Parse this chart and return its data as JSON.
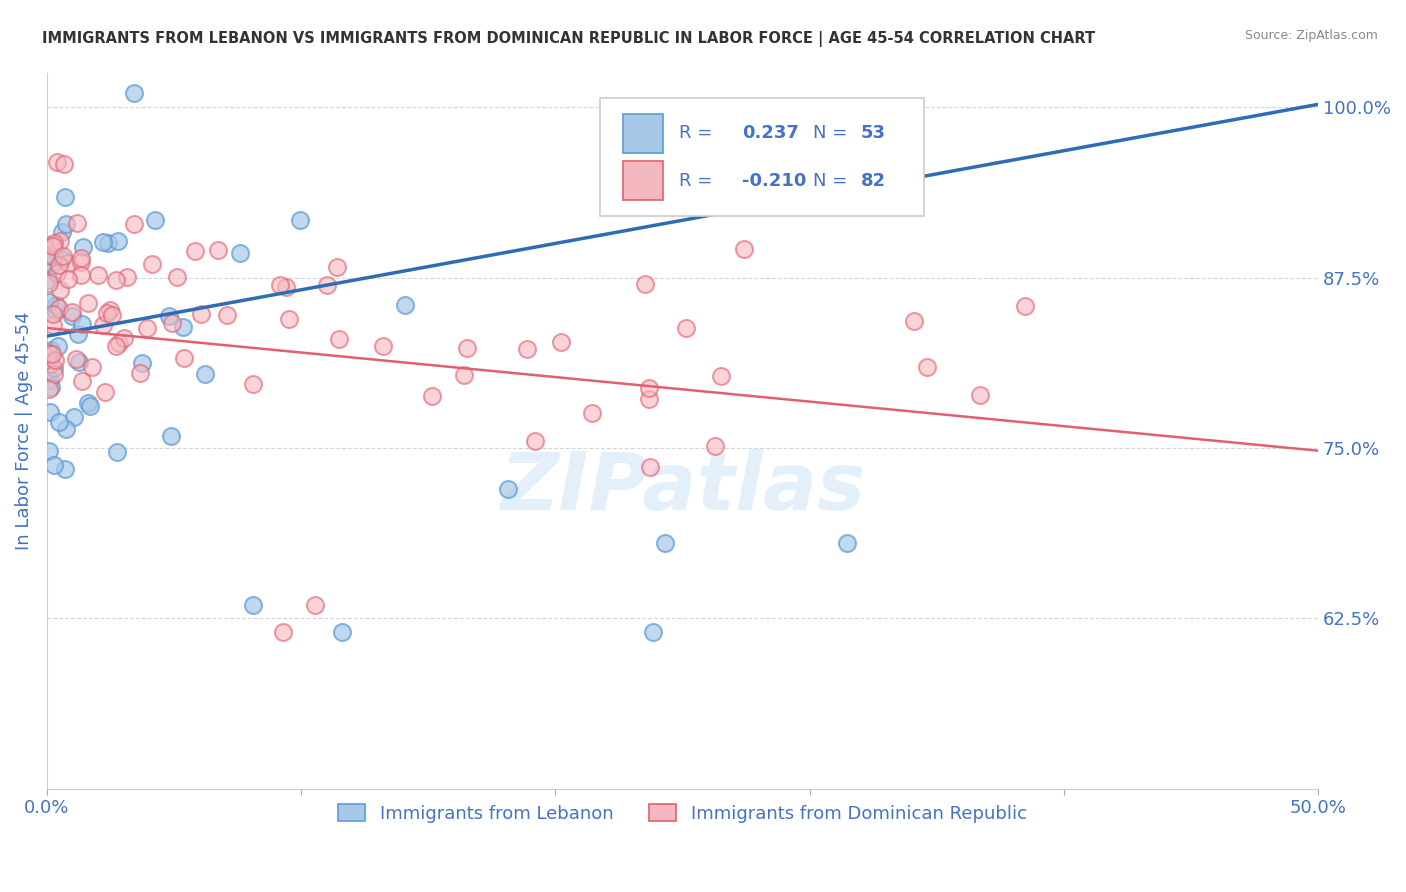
{
  "title": "IMMIGRANTS FROM LEBANON VS IMMIGRANTS FROM DOMINICAN REPUBLIC IN LABOR FORCE | AGE 45-54 CORRELATION CHART",
  "source": "Source: ZipAtlas.com",
  "ylabel": "In Labor Force | Age 45-54",
  "xlim": [
    0.0,
    0.5
  ],
  "ylim": [
    0.5,
    1.025
  ],
  "blue_color": "#a8c8e8",
  "blue_edge_color": "#5b9bd5",
  "pink_color": "#f4b8c1",
  "pink_edge_color": "#e06070",
  "blue_line_color": "#2e6db4",
  "pink_line_color": "#e06070",
  "tick_color": "#4472c4",
  "grid_color": "#cccccc",
  "watermark": "ZIPatlas",
  "label_blue": "Immigrants from Lebanon",
  "label_pink": "Immigrants from Dominican Republic",
  "blue_line_x0": 0.0,
  "blue_line_y0": 0.832,
  "blue_line_x1": 0.5,
  "blue_line_y1": 1.002,
  "pink_line_x0": 0.0,
  "pink_line_y0": 0.838,
  "pink_line_x1": 0.5,
  "pink_line_y1": 0.748,
  "legend_r_blue": "0.237",
  "legend_n_blue": "53",
  "legend_r_pink": "-0.210",
  "legend_n_pink": "82"
}
